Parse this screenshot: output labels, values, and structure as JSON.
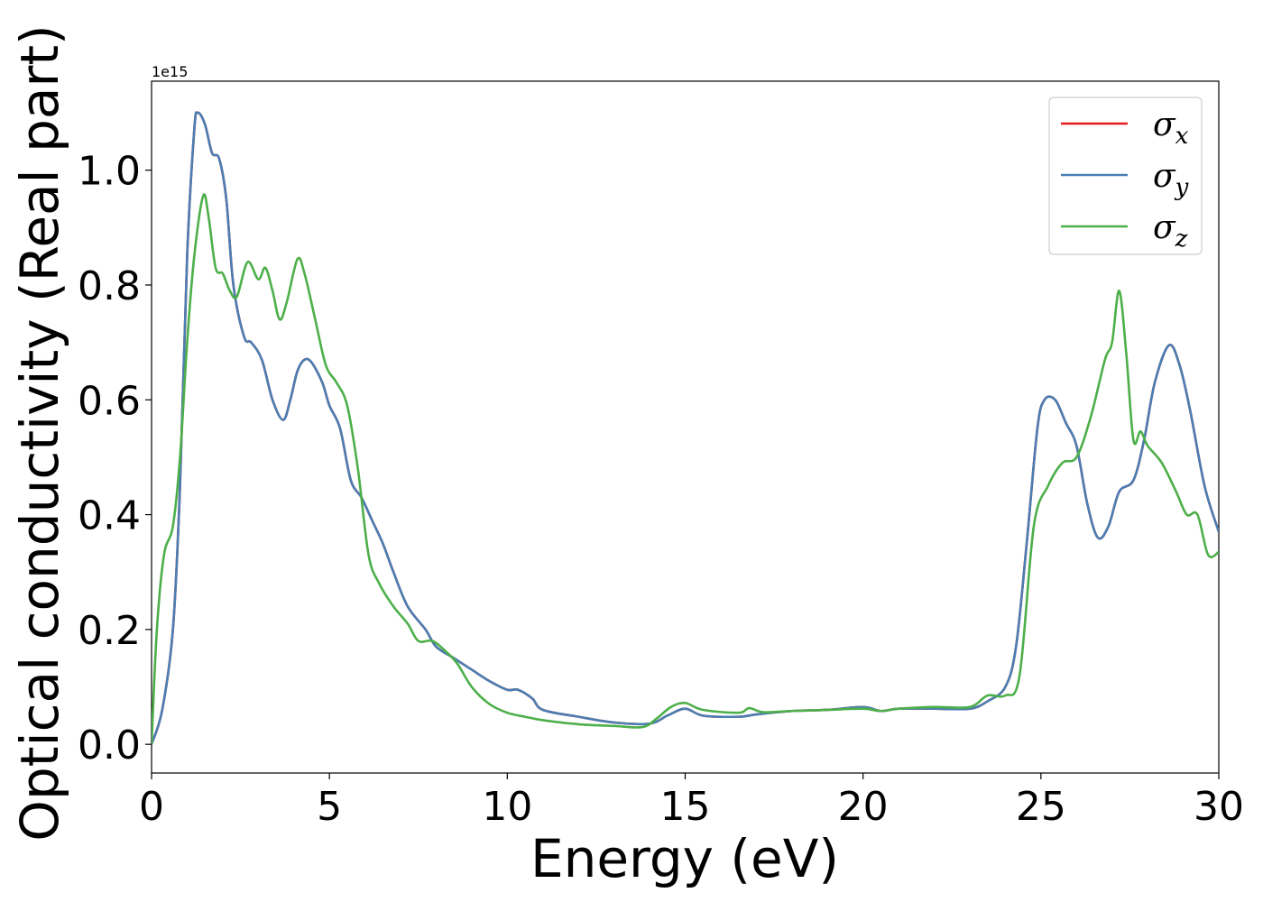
{
  "chart_data": {
    "type": "line",
    "xlabel": "Energy (eV)",
    "ylabel": "Optical conductivity (Real part)",
    "offset_text": "1e15",
    "xlim": [
      0,
      30
    ],
    "ylim": [
      -0.05,
      1.155
    ],
    "x_ticks": [
      0,
      5,
      10,
      15,
      20,
      25,
      30
    ],
    "y_ticks": [
      0.0,
      0.2,
      0.4,
      0.6,
      0.8,
      1.0
    ],
    "y_tick_labels": [
      "0.0",
      "0.2",
      "0.4",
      "0.6",
      "0.8",
      "1.0"
    ],
    "grid": false,
    "legend_position": "upper-right",
    "series": [
      {
        "symbol": "σ",
        "subscript": "x",
        "color": "#e41a1c",
        "points": [
          [
            0,
            0
          ],
          [
            0.3,
            0.06
          ],
          [
            0.6,
            0.2
          ],
          [
            0.8,
            0.45
          ],
          [
            1.0,
            0.85
          ],
          [
            1.2,
            1.07
          ],
          [
            1.3,
            1.1
          ],
          [
            1.5,
            1.08
          ],
          [
            1.7,
            1.03
          ],
          [
            1.9,
            1.02
          ],
          [
            2.1,
            0.95
          ],
          [
            2.3,
            0.8
          ],
          [
            2.6,
            0.71
          ],
          [
            2.8,
            0.7
          ],
          [
            3.1,
            0.67
          ],
          [
            3.4,
            0.6
          ],
          [
            3.7,
            0.565
          ],
          [
            3.9,
            0.6
          ],
          [
            4.1,
            0.65
          ],
          [
            4.3,
            0.67
          ],
          [
            4.5,
            0.665
          ],
          [
            4.8,
            0.63
          ],
          [
            5.0,
            0.59
          ],
          [
            5.3,
            0.55
          ],
          [
            5.6,
            0.46
          ],
          [
            5.9,
            0.43
          ],
          [
            6.2,
            0.39
          ],
          [
            6.5,
            0.35
          ],
          [
            6.8,
            0.3
          ],
          [
            7.2,
            0.24
          ],
          [
            7.7,
            0.2
          ],
          [
            8.0,
            0.17
          ],
          [
            8.5,
            0.15
          ],
          [
            9.0,
            0.13
          ],
          [
            9.5,
            0.11
          ],
          [
            10.0,
            0.095
          ],
          [
            10.3,
            0.095
          ],
          [
            10.7,
            0.08
          ],
          [
            11.0,
            0.06
          ],
          [
            12.0,
            0.048
          ],
          [
            13.0,
            0.038
          ],
          [
            14.0,
            0.036
          ],
          [
            14.5,
            0.05
          ],
          [
            15.0,
            0.062
          ],
          [
            15.5,
            0.05
          ],
          [
            16.5,
            0.048
          ],
          [
            17.0,
            0.052
          ],
          [
            18.0,
            0.058
          ],
          [
            19.0,
            0.06
          ],
          [
            20.0,
            0.065
          ],
          [
            20.5,
            0.058
          ],
          [
            21.0,
            0.062
          ],
          [
            22.0,
            0.062
          ],
          [
            23.0,
            0.062
          ],
          [
            23.5,
            0.075
          ],
          [
            24.0,
            0.1
          ],
          [
            24.3,
            0.17
          ],
          [
            24.6,
            0.35
          ],
          [
            24.9,
            0.55
          ],
          [
            25.1,
            0.6
          ],
          [
            25.4,
            0.6
          ],
          [
            25.7,
            0.56
          ],
          [
            26.0,
            0.52
          ],
          [
            26.3,
            0.42
          ],
          [
            26.6,
            0.36
          ],
          [
            26.9,
            0.38
          ],
          [
            27.2,
            0.44
          ],
          [
            27.6,
            0.46
          ],
          [
            27.9,
            0.53
          ],
          [
            28.2,
            0.63
          ],
          [
            28.6,
            0.695
          ],
          [
            28.9,
            0.66
          ],
          [
            29.2,
            0.58
          ],
          [
            29.6,
            0.45
          ],
          [
            30.0,
            0.37
          ]
        ]
      },
      {
        "symbol": "σ",
        "subscript": "y",
        "color": "#4a7eb3",
        "points": [
          [
            0,
            0
          ],
          [
            0.3,
            0.06
          ],
          [
            0.6,
            0.2
          ],
          [
            0.8,
            0.45
          ],
          [
            1.0,
            0.85
          ],
          [
            1.2,
            1.07
          ],
          [
            1.3,
            1.1
          ],
          [
            1.5,
            1.08
          ],
          [
            1.7,
            1.03
          ],
          [
            1.9,
            1.02
          ],
          [
            2.1,
            0.95
          ],
          [
            2.3,
            0.8
          ],
          [
            2.6,
            0.71
          ],
          [
            2.8,
            0.7
          ],
          [
            3.1,
            0.67
          ],
          [
            3.4,
            0.6
          ],
          [
            3.7,
            0.565
          ],
          [
            3.9,
            0.6
          ],
          [
            4.1,
            0.65
          ],
          [
            4.3,
            0.67
          ],
          [
            4.5,
            0.665
          ],
          [
            4.8,
            0.63
          ],
          [
            5.0,
            0.59
          ],
          [
            5.3,
            0.55
          ],
          [
            5.6,
            0.46
          ],
          [
            5.9,
            0.43
          ],
          [
            6.2,
            0.39
          ],
          [
            6.5,
            0.35
          ],
          [
            6.8,
            0.3
          ],
          [
            7.2,
            0.24
          ],
          [
            7.7,
            0.2
          ],
          [
            8.0,
            0.17
          ],
          [
            8.5,
            0.15
          ],
          [
            9.0,
            0.13
          ],
          [
            9.5,
            0.11
          ],
          [
            10.0,
            0.095
          ],
          [
            10.3,
            0.095
          ],
          [
            10.7,
            0.08
          ],
          [
            11.0,
            0.06
          ],
          [
            12.0,
            0.048
          ],
          [
            13.0,
            0.038
          ],
          [
            14.0,
            0.036
          ],
          [
            14.5,
            0.05
          ],
          [
            15.0,
            0.062
          ],
          [
            15.5,
            0.05
          ],
          [
            16.5,
            0.048
          ],
          [
            17.0,
            0.052
          ],
          [
            18.0,
            0.058
          ],
          [
            19.0,
            0.06
          ],
          [
            20.0,
            0.065
          ],
          [
            20.5,
            0.058
          ],
          [
            21.0,
            0.062
          ],
          [
            22.0,
            0.062
          ],
          [
            23.0,
            0.062
          ],
          [
            23.5,
            0.075
          ],
          [
            24.0,
            0.1
          ],
          [
            24.3,
            0.17
          ],
          [
            24.6,
            0.35
          ],
          [
            24.9,
            0.55
          ],
          [
            25.1,
            0.6
          ],
          [
            25.4,
            0.6
          ],
          [
            25.7,
            0.56
          ],
          [
            26.0,
            0.52
          ],
          [
            26.3,
            0.42
          ],
          [
            26.6,
            0.36
          ],
          [
            26.9,
            0.38
          ],
          [
            27.2,
            0.44
          ],
          [
            27.6,
            0.46
          ],
          [
            27.9,
            0.53
          ],
          [
            28.2,
            0.63
          ],
          [
            28.6,
            0.695
          ],
          [
            28.9,
            0.66
          ],
          [
            29.2,
            0.58
          ],
          [
            29.6,
            0.45
          ],
          [
            30.0,
            0.37
          ]
        ]
      },
      {
        "symbol": "σ",
        "subscript": "z",
        "color": "#4daf4a",
        "points": [
          [
            0,
            0
          ],
          [
            0.15,
            0.2
          ],
          [
            0.35,
            0.33
          ],
          [
            0.6,
            0.38
          ],
          [
            0.8,
            0.5
          ],
          [
            1.0,
            0.7
          ],
          [
            1.2,
            0.85
          ],
          [
            1.45,
            0.955
          ],
          [
            1.6,
            0.92
          ],
          [
            1.8,
            0.83
          ],
          [
            2.0,
            0.82
          ],
          [
            2.2,
            0.79
          ],
          [
            2.4,
            0.78
          ],
          [
            2.7,
            0.84
          ],
          [
            3.0,
            0.81
          ],
          [
            3.2,
            0.83
          ],
          [
            3.4,
            0.79
          ],
          [
            3.6,
            0.74
          ],
          [
            3.8,
            0.77
          ],
          [
            4.1,
            0.845
          ],
          [
            4.3,
            0.82
          ],
          [
            4.6,
            0.74
          ],
          [
            4.9,
            0.66
          ],
          [
            5.2,
            0.63
          ],
          [
            5.5,
            0.59
          ],
          [
            5.8,
            0.48
          ],
          [
            6.1,
            0.33
          ],
          [
            6.4,
            0.28
          ],
          [
            6.8,
            0.24
          ],
          [
            7.2,
            0.21
          ],
          [
            7.5,
            0.18
          ],
          [
            7.9,
            0.18
          ],
          [
            8.3,
            0.16
          ],
          [
            8.6,
            0.14
          ],
          [
            9.0,
            0.1
          ],
          [
            9.5,
            0.07
          ],
          [
            10.0,
            0.055
          ],
          [
            10.5,
            0.048
          ],
          [
            11.0,
            0.042
          ],
          [
            12.0,
            0.035
          ],
          [
            13.0,
            0.032
          ],
          [
            13.8,
            0.03
          ],
          [
            14.2,
            0.045
          ],
          [
            14.6,
            0.065
          ],
          [
            15.0,
            0.072
          ],
          [
            15.5,
            0.06
          ],
          [
            16.5,
            0.055
          ],
          [
            16.8,
            0.063
          ],
          [
            17.2,
            0.056
          ],
          [
            18.0,
            0.058
          ],
          [
            19.0,
            0.06
          ],
          [
            20.0,
            0.062
          ],
          [
            20.5,
            0.058
          ],
          [
            21.0,
            0.062
          ],
          [
            22.0,
            0.065
          ],
          [
            23.0,
            0.065
          ],
          [
            23.5,
            0.085
          ],
          [
            24.0,
            0.085
          ],
          [
            24.4,
            0.12
          ],
          [
            24.8,
            0.38
          ],
          [
            25.2,
            0.45
          ],
          [
            25.6,
            0.49
          ],
          [
            26.0,
            0.5
          ],
          [
            26.4,
            0.57
          ],
          [
            26.8,
            0.67
          ],
          [
            27.0,
            0.7
          ],
          [
            27.2,
            0.79
          ],
          [
            27.4,
            0.68
          ],
          [
            27.6,
            0.53
          ],
          [
            27.8,
            0.545
          ],
          [
            28.0,
            0.52
          ],
          [
            28.4,
            0.49
          ],
          [
            28.8,
            0.44
          ],
          [
            29.1,
            0.4
          ],
          [
            29.4,
            0.4
          ],
          [
            29.7,
            0.33
          ],
          [
            30.0,
            0.335
          ]
        ]
      }
    ]
  }
}
